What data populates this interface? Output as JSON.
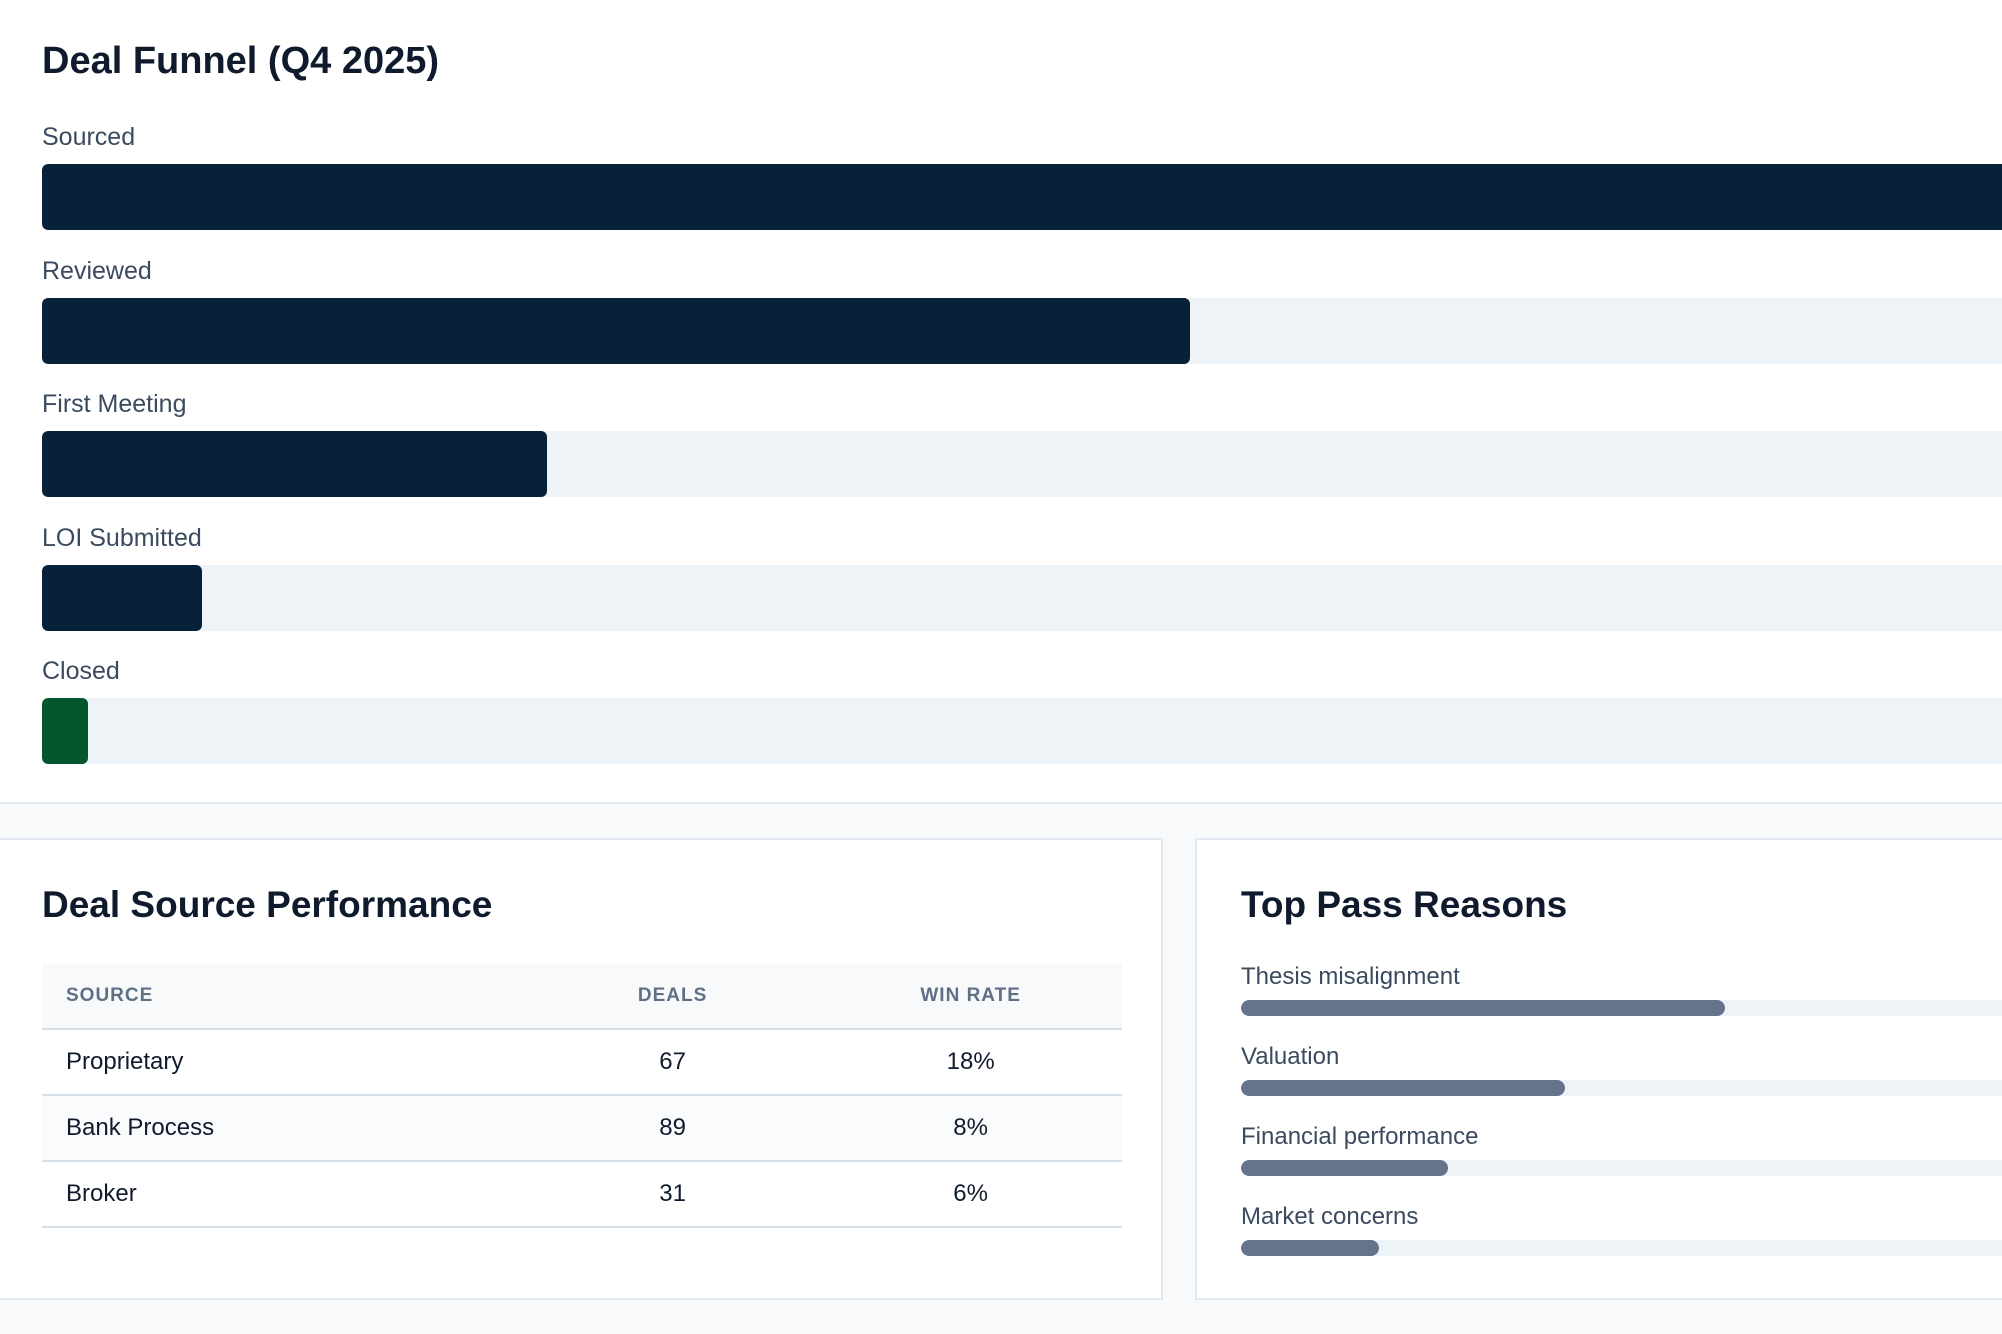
{
  "funnel": {
    "title": "Deal Funnel (Q4 2025)",
    "stages": [
      {
        "label": "Sourced",
        "fraction": 1.0,
        "color": "#062138"
      },
      {
        "label": "Reviewed",
        "fraction": 0.58,
        "color": "#062138"
      },
      {
        "label": "First Meeting",
        "fraction": 0.255,
        "color": "#062138"
      },
      {
        "label": "LOI Submitted",
        "fraction": 0.081,
        "color": "#062138"
      },
      {
        "label": "Closed",
        "fraction": 0.023,
        "color": "#04572c"
      }
    ]
  },
  "source_performance": {
    "title": "Deal Source Performance",
    "headers": {
      "source": "SOURCE",
      "deals": "DEALS",
      "win_rate": "WIN RATE"
    },
    "rows": [
      {
        "source": "Proprietary",
        "deals": "67",
        "win_rate": "18%",
        "highlight": true
      },
      {
        "source": "Bank Process",
        "deals": "89",
        "win_rate": "8%",
        "highlight": false
      },
      {
        "source": "Broker",
        "deals": "31",
        "win_rate": "6%",
        "highlight": false
      }
    ]
  },
  "pass_reasons": {
    "title": "Top Pass Reasons",
    "items": [
      {
        "label": "Thesis misalignment",
        "fraction": 0.59
      },
      {
        "label": "Valuation",
        "fraction": 0.395
      },
      {
        "label": "Financial performance",
        "fraction": 0.253
      },
      {
        "label": "Market concerns",
        "fraction": 0.168
      }
    ]
  }
}
